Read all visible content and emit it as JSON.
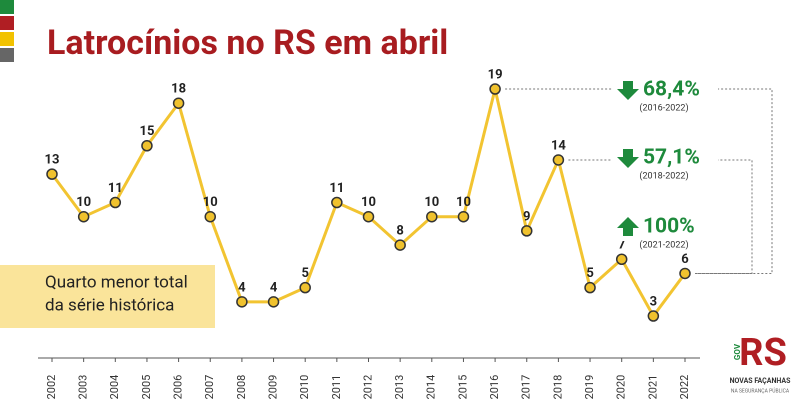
{
  "chart_data": {
    "type": "line",
    "title": "Latrocínios no RS em abril",
    "categories": [
      "2002",
      "2003",
      "2004",
      "2005",
      "2006",
      "2007",
      "2008",
      "2009",
      "2010",
      "2011",
      "2012",
      "2013",
      "2014",
      "2015",
      "2016",
      "2017",
      "2018",
      "2019",
      "2020",
      "2021",
      "2022"
    ],
    "series": [
      {
        "name": "Latrocínios",
        "color": "#f2c431",
        "values": [
          13,
          10,
          11,
          15,
          18,
          10,
          4,
          4,
          5,
          11,
          10,
          8,
          10,
          10,
          19,
          9,
          14,
          5,
          7,
          3,
          6
        ]
      }
    ],
    "annotations": [
      {
        "label": "68,4%",
        "period": "(2016-2022)",
        "direction": "down",
        "from": "2016",
        "to": "2022"
      },
      {
        "label": "57,1%",
        "period": "(2018-2022)",
        "direction": "down",
        "from": "2018",
        "to": "2022"
      },
      {
        "label": "100%",
        "period": "(2021-2022)",
        "direction": "up"
      }
    ],
    "note": [
      "Quarto menor total",
      "da série histórica"
    ]
  },
  "logo": {
    "vertical": "GOV",
    "main": "RS",
    "line1": "NOVAS FAÇANHAS",
    "line2": "NA SEGURANÇA PÚBLICA"
  }
}
